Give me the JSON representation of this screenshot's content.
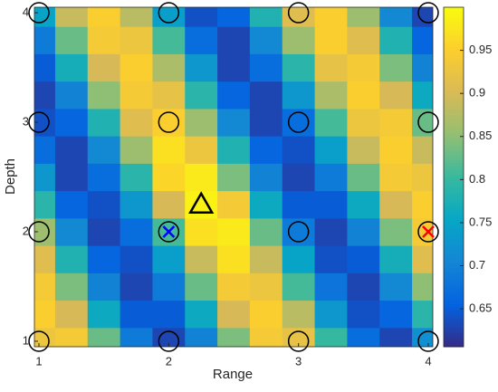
{
  "chart_data": {
    "type": "heatmap",
    "x_label": "Range",
    "y_label": "Depth",
    "x": [
      1,
      1.25,
      1.5,
      1.75,
      2,
      2.25,
      2.5,
      2.75,
      3,
      3.25,
      3.5,
      3.75,
      4
    ],
    "y": [
      1,
      1.25,
      1.5,
      1.75,
      2,
      2.25,
      2.5,
      2.75,
      3,
      3.25,
      3.5,
      3.75,
      4
    ],
    "z": [
      [
        0.93,
        0.94,
        0.83,
        0.69,
        0.63,
        0.7,
        0.84,
        0.94,
        0.92,
        0.8,
        0.67,
        0.63,
        0.72
      ],
      [
        0.95,
        0.9,
        0.76,
        0.65,
        0.65,
        0.76,
        0.9,
        0.95,
        0.88,
        0.73,
        0.64,
        0.66,
        0.79
      ],
      [
        0.94,
        0.84,
        0.7,
        0.63,
        0.69,
        0.83,
        0.94,
        0.93,
        0.81,
        0.68,
        0.63,
        0.71,
        0.85
      ],
      [
        0.91,
        0.78,
        0.66,
        0.64,
        0.74,
        0.89,
        0.97,
        0.89,
        0.75,
        0.64,
        0.65,
        0.77,
        0.91
      ],
      [
        0.86,
        0.71,
        0.63,
        0.67,
        0.81,
        0.97,
        0.98,
        0.83,
        0.69,
        0.63,
        0.7,
        0.84,
        0.94
      ],
      [
        0.79,
        0.66,
        0.64,
        0.73,
        0.9,
        0.99,
        0.94,
        0.76,
        0.65,
        0.65,
        0.76,
        0.9,
        0.95
      ],
      [
        0.73,
        0.63,
        0.67,
        0.79,
        0.96,
        0.98,
        0.84,
        0.7,
        0.63,
        0.69,
        0.83,
        0.94,
        0.93
      ],
      [
        0.67,
        0.63,
        0.71,
        0.86,
        0.97,
        0.93,
        0.78,
        0.66,
        0.64,
        0.74,
        0.89,
        0.95,
        0.89
      ],
      [
        0.64,
        0.66,
        0.78,
        0.91,
        0.95,
        0.86,
        0.71,
        0.63,
        0.67,
        0.81,
        0.93,
        0.94,
        0.83
      ],
      [
        0.63,
        0.7,
        0.85,
        0.94,
        0.92,
        0.79,
        0.66,
        0.63,
        0.73,
        0.87,
        0.95,
        0.9,
        0.76
      ],
      [
        0.65,
        0.77,
        0.9,
        0.95,
        0.87,
        0.73,
        0.63,
        0.67,
        0.79,
        0.92,
        0.94,
        0.84,
        0.7
      ],
      [
        0.69,
        0.83,
        0.94,
        0.93,
        0.81,
        0.67,
        0.63,
        0.71,
        0.86,
        0.95,
        0.91,
        0.78,
        0.66
      ],
      [
        0.75,
        0.89,
        0.95,
        0.88,
        0.74,
        0.64,
        0.66,
        0.78,
        0.91,
        0.95,
        0.86,
        0.71,
        0.63
      ]
    ],
    "colormap": "parula",
    "clim": [
      0.606,
      1.0
    ],
    "cticks": [
      0.65,
      0.7,
      0.75,
      0.8,
      0.85,
      0.9,
      0.95
    ],
    "xlim": [
      0.965,
      4.035
    ],
    "ylim": [
      0.95,
      4.05
    ],
    "xticks": [
      1,
      2,
      3,
      4
    ],
    "yticks": [
      1,
      2,
      3,
      4
    ],
    "markers": [
      {
        "marker": "circle",
        "color": "#000000",
        "x": [
          1,
          2,
          3,
          4,
          1,
          2,
          3,
          4,
          1,
          2,
          3,
          4,
          1,
          2,
          3,
          4
        ],
        "y": [
          1,
          1,
          1,
          1,
          2,
          2,
          2,
          2,
          3,
          3,
          3,
          3,
          4,
          4,
          4,
          4
        ]
      },
      {
        "marker": "x",
        "color": "#0000ff",
        "x": [
          2
        ],
        "y": [
          2
        ]
      },
      {
        "marker": "x",
        "color": "#ff0000",
        "x": [
          4
        ],
        "y": [
          2
        ]
      },
      {
        "marker": "triangle",
        "color": "#000000",
        "x": [
          2.25
        ],
        "y": [
          2.25
        ]
      }
    ]
  }
}
